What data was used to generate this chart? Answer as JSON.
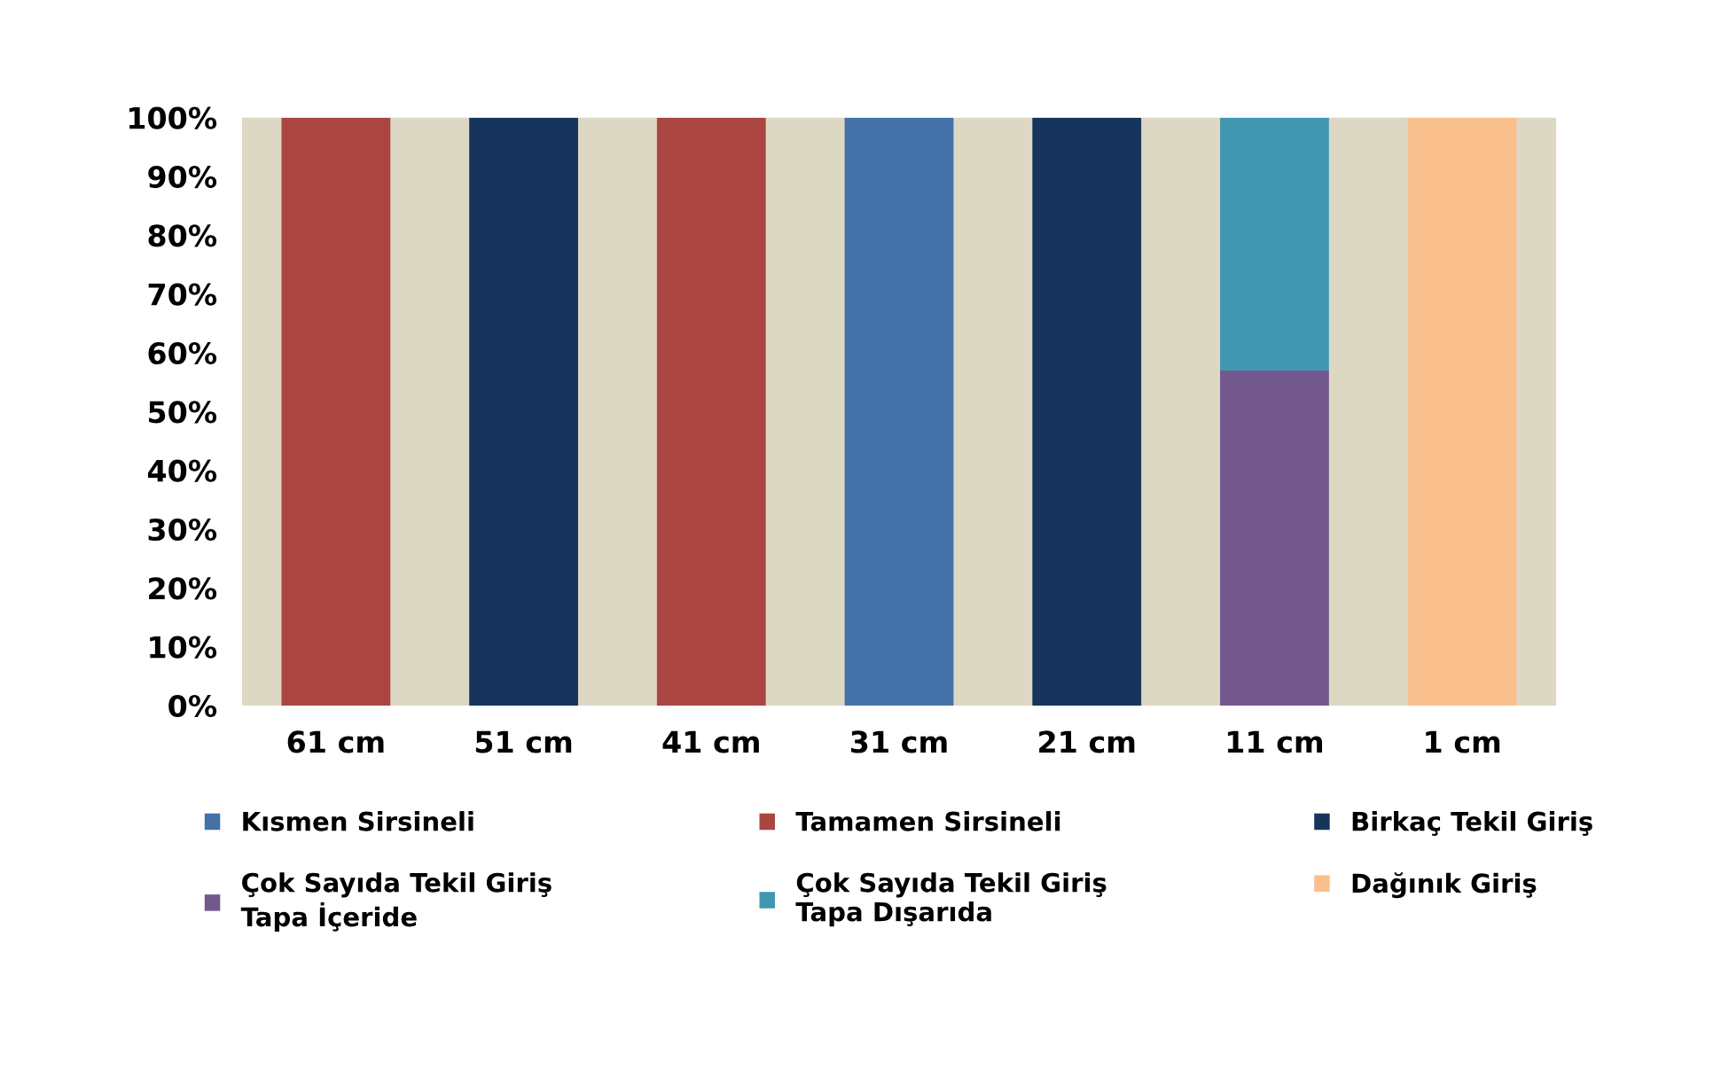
{
  "chart_data": {
    "type": "bar",
    "stacked": true,
    "categories": [
      "61 cm",
      "51 cm",
      "41 cm",
      "31 cm",
      "21 cm",
      "11 cm",
      "1 cm"
    ],
    "series": [
      {
        "name": "Kısmen Sirsineli",
        "color": "#4472a8",
        "values": [
          null,
          null,
          null,
          100,
          null,
          null,
          null
        ]
      },
      {
        "name": "Tamamen Sirsineli",
        "color": "#aa4542",
        "values": [
          100,
          null,
          100,
          null,
          null,
          null,
          null
        ]
      },
      {
        "name": "Birkaç Tekil Giriş",
        "color": "#17355c",
        "values": [
          null,
          100,
          null,
          null,
          100,
          null,
          null
        ]
      },
      {
        "name": "Çok Sayıda Tekil Giriş\nTapa İçeride",
        "color": "#73588e",
        "values": [
          null,
          null,
          null,
          null,
          null,
          57,
          null
        ]
      },
      {
        "name": "Çok Sayıda Tekil Giriş\nTapa Dışarıda",
        "color": "#4097b0",
        "values": [
          null,
          null,
          null,
          null,
          null,
          43,
          null
        ]
      },
      {
        "name": "Dağınık Giriş",
        "color": "#f9bf8d",
        "values": [
          null,
          null,
          null,
          null,
          null,
          null,
          100
        ]
      }
    ],
    "ylim": [
      0,
      100
    ],
    "yticks": [
      {
        "value": 0,
        "label": "0%"
      },
      {
        "value": 10,
        "label": "10%"
      },
      {
        "value": 20,
        "label": "20%"
      },
      {
        "value": 30,
        "label": "30%"
      },
      {
        "value": 40,
        "label": "40%"
      },
      {
        "value": 50,
        "label": "50%"
      },
      {
        "value": 60,
        "label": "60%"
      },
      {
        "value": 70,
        "label": "70%"
      },
      {
        "value": 80,
        "label": "80%"
      },
      {
        "value": 90,
        "label": "90%"
      },
      {
        "value": 100,
        "label": "100%"
      }
    ],
    "grid": false,
    "legend": "bottom"
  }
}
